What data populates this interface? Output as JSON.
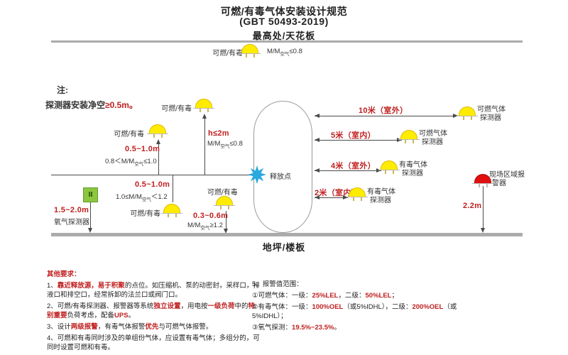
{
  "title": {
    "line1": "可燃/有毒气体安装设计规范",
    "line2": "(GBT 50493-2019)"
  },
  "ceiling_label": "最高处/天花板",
  "floor_label": "地坪/楼板",
  "note": {
    "prefix": "注:",
    "text": "探测器安装净空",
    "highlight": "≥0.5m。"
  },
  "labels": {
    "flammable_toxic": "可燃/有毒",
    "release_point": "释放点",
    "oxygen_detector": "氧气探测器",
    "oxygen_symbol": "Ⅱ",
    "oxygen_range": "1.5~2.0m",
    "alarm_line1": "现场区域报",
    "alarm_line2": "警器",
    "alarm_height": "2.2m"
  },
  "formulas": {
    "ceiling": {
      "pre": "",
      "base": "M/M",
      "sub": "空气",
      "cond": "≤0.8"
    },
    "tall": {
      "dist": "h≤2m",
      "pre": "",
      "base": "M/M",
      "sub": "空气",
      "cond": "≤0.8"
    },
    "up": {
      "dist": "0.5~1.0m",
      "pre": "0.8＜",
      "base": "M/M",
      "sub": "空气",
      "cond": "≤1.0"
    },
    "below": {
      "dist": "0.5~1.0m",
      "pre": "1.0≤",
      "base": "M/M",
      "sub": "空气",
      "cond": "＜1.2"
    },
    "down": {
      "dist": "0.3~0.6m",
      "pre": "",
      "base": "M/M",
      "sub": "空气",
      "cond": "≥1.2"
    }
  },
  "right_arrows": [
    {
      "label": "10米（室外）",
      "det_line1": "可燃气体",
      "det_line2": "探测器"
    },
    {
      "label": "5米（室内）",
      "det_line1": "可燃气体",
      "det_line2": "探测器"
    },
    {
      "label": "4米（室外）",
      "det_line1": "有毒气体",
      "det_line2": "探测器"
    },
    {
      "label": "2米（室内）",
      "det_line1": "有毒气体",
      "det_line2": "探测器"
    }
  ],
  "notes_left": {
    "heading": "其他要求：",
    "item1": [
      {
        "t": "1、",
        "red": false
      },
      {
        "t": "靠近释放源，易于积聚",
        "red": true
      },
      {
        "t": "的点位。如压缩机、泵的动密封，采样口，排液口和排空口，经常拆卸的法兰口或阀门口。",
        "red": false
      }
    ],
    "item2": [
      {
        "t": "2、可燃/有毒探测器、报警器等系统",
        "red": false
      },
      {
        "t": "独立设置",
        "red": true
      },
      {
        "t": "，用电按",
        "red": false
      },
      {
        "t": "一级负荷",
        "red": true
      },
      {
        "t": "中的",
        "red": false
      },
      {
        "t": "特别重要",
        "red": true
      },
      {
        "t": "负荷考虑，配备",
        "red": false
      },
      {
        "t": "UPS",
        "red": true
      },
      {
        "t": "。",
        "red": false
      }
    ],
    "item3": [
      {
        "t": "3、设计",
        "red": false
      },
      {
        "t": "两级报警",
        "red": true
      },
      {
        "t": "，有毒气体报警",
        "red": false
      },
      {
        "t": "优先",
        "red": true
      },
      {
        "t": "与可燃气体报警。",
        "red": false
      }
    ],
    "item4": [
      {
        "t": "4、可燃和有毒同时涉及的单组份气体，应设置有毒气体；多组分的，可同时设置可燃和有毒。",
        "red": false
      }
    ]
  },
  "notes_right": {
    "heading": "5、报警值范围：",
    "item1": [
      {
        "t": "①可燃气体：一级：",
        "red": false
      },
      {
        "t": "25%LEL",
        "red": true
      },
      {
        "t": "，二级：",
        "red": false
      },
      {
        "t": "50%LEL",
        "red": true
      },
      {
        "t": "；",
        "red": false
      }
    ],
    "item2": [
      {
        "t": "②有毒气体：一级：",
        "red": false
      },
      {
        "t": "100%OEL",
        "red": true
      },
      {
        "t": "（或5%IDHL），二级：",
        "red": false
      },
      {
        "t": "200%OEL",
        "red": true
      },
      {
        "t": "（或5%IDHL）；",
        "red": false
      }
    ],
    "item3": [
      {
        "t": "③氧气探测：",
        "red": false
      },
      {
        "t": "19.5%~23.5%",
        "red": true
      },
      {
        "t": "。",
        "red": false
      }
    ]
  },
  "colors": {
    "accent_red": "#c02020",
    "detector_yellow": "#ffec00",
    "alarm_red": "#e01010",
    "oxygen_green": "#8cc63f",
    "star_blue": "#2aa8e0",
    "bar_gray": "#ababab"
  }
}
